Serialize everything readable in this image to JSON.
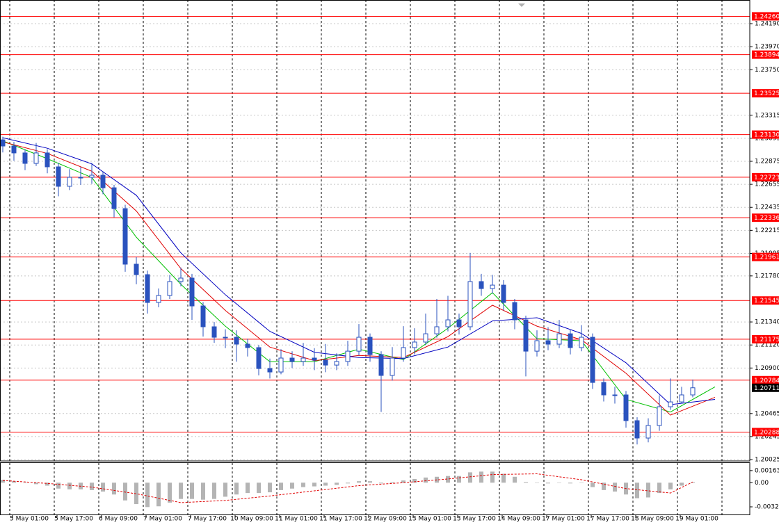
{
  "chart_data": {
    "type": "candlestick",
    "ylim": [
      1.20012,
      1.24416
    ],
    "yticks": [
      {
        "value": 1.2419,
        "label": "1.24190"
      },
      {
        "value": 1.2397,
        "label": "1.23970"
      },
      {
        "value": 1.2375,
        "label": "1.23750"
      },
      {
        "value": 1.23315,
        "label": "1.23315"
      },
      {
        "value": 1.23095,
        "label": "1.23095"
      },
      {
        "value": 1.22875,
        "label": "1.22875"
      },
      {
        "value": 1.22655,
        "label": "1.22655"
      },
      {
        "value": 1.22435,
        "label": "1.22435"
      },
      {
        "value": 1.22215,
        "label": "1.22215"
      },
      {
        "value": 1.21995,
        "label": "1.21995"
      },
      {
        "value": 1.2178,
        "label": "1.21780"
      },
      {
        "value": 1.2134,
        "label": "1.21340"
      },
      {
        "value": 1.2112,
        "label": "1.21120"
      },
      {
        "value": 1.209,
        "label": "1.20900"
      },
      {
        "value": 1.20465,
        "label": "1.20465"
      },
      {
        "value": 1.20245,
        "label": "1.20245"
      },
      {
        "value": 1.20025,
        "label": "1.20025"
      }
    ],
    "grid": true,
    "candle_color": "#2a52be",
    "candles": {
      "open": [
        1.2308,
        1.23021,
        1.22955,
        1.22855,
        1.22955,
        1.22822,
        1.22636,
        1.22722,
        1.22722,
        1.22742,
        1.22622,
        1.22423,
        1.21892,
        1.21792,
        1.21526,
        1.21593,
        1.21726,
        1.21759,
        1.21493,
        1.21294,
        1.21194,
        1.21194,
        1.21128,
        1.21095,
        1.20895,
        1.20862,
        1.20995,
        1.20962,
        1.20995,
        1.20975,
        1.20928,
        1.20962,
        1.21061,
        1.21194,
        1.21028,
        1.20829,
        1.20995,
        1.21095,
        1.21148,
        1.21227,
        1.21294,
        1.2136,
        1.21294,
        1.21726,
        1.21659,
        1.21692,
        1.21526,
        1.2136,
        1.21061,
        1.21161,
        1.21128,
        1.21227,
        1.21095,
        1.21194,
        1.20762,
        1.20643,
        1.20643,
        1.20397,
        1.20231,
        1.20351,
        1.2053,
        1.20576,
        1.20643
      ],
      "high": [
        1.2311,
        1.2306,
        1.2299,
        1.2305,
        1.2299,
        1.2286,
        1.228,
        1.2282,
        1.2286,
        1.2278,
        1.2265,
        1.2246,
        1.2196,
        1.2183,
        1.2166,
        1.2179,
        1.2186,
        1.218,
        1.2153,
        1.2134,
        1.2127,
        1.2126,
        1.2118,
        1.2112,
        1.2099,
        1.2108,
        1.2106,
        1.2114,
        1.2109,
        1.2113,
        1.2104,
        1.2116,
        1.2132,
        1.2123,
        1.2106,
        1.211,
        1.213,
        1.2128,
        1.2142,
        1.2156,
        1.2159,
        1.2142,
        1.22,
        1.218,
        1.2179,
        1.2174,
        1.2156,
        1.214,
        1.2126,
        1.2129,
        1.2136,
        1.2127,
        1.2131,
        1.2123,
        1.208,
        1.2072,
        1.2068,
        1.2043,
        1.2042,
        1.2064,
        1.208,
        1.2072,
        1.2079
      ],
      "low": [
        1.2296,
        1.2288,
        1.2279,
        1.2283,
        1.2276,
        1.2254,
        1.226,
        1.2265,
        1.2266,
        1.2256,
        1.2234,
        1.2182,
        1.217,
        1.2142,
        1.2148,
        1.2156,
        1.2168,
        1.2136,
        1.212,
        1.2114,
        1.2109,
        1.2096,
        1.2101,
        1.2083,
        1.208,
        1.2084,
        1.209,
        1.2092,
        1.2088,
        1.2086,
        1.2088,
        1.2092,
        1.2102,
        1.2096,
        1.2048,
        1.2078,
        1.2096,
        1.2103,
        1.2112,
        1.2119,
        1.2125,
        1.2122,
        1.2126,
        1.2159,
        1.2161,
        1.2145,
        1.2127,
        1.2082,
        1.2101,
        1.2107,
        1.2109,
        1.2103,
        1.2106,
        1.207,
        1.2058,
        1.2056,
        1.2033,
        1.2017,
        1.2019,
        1.203,
        1.205,
        1.2056,
        1.2062
      ],
      "close": [
        1.23021,
        1.22955,
        1.22855,
        1.22955,
        1.22822,
        1.22636,
        1.22722,
        1.22722,
        1.22742,
        1.22622,
        1.22423,
        1.21892,
        1.21792,
        1.21526,
        1.21593,
        1.21726,
        1.21759,
        1.21493,
        1.21294,
        1.21194,
        1.21194,
        1.21128,
        1.21095,
        1.20895,
        1.20862,
        1.20995,
        1.20962,
        1.20995,
        1.20975,
        1.20928,
        1.20962,
        1.21061,
        1.21194,
        1.21028,
        1.20829,
        1.20995,
        1.21095,
        1.21148,
        1.21227,
        1.21294,
        1.2136,
        1.21294,
        1.21726,
        1.21659,
        1.21692,
        1.21526,
        1.2136,
        1.21061,
        1.21161,
        1.21128,
        1.21227,
        1.21095,
        1.21194,
        1.20762,
        1.20643,
        1.20643,
        1.20397,
        1.20231,
        1.20351,
        1.2053,
        1.20576,
        1.20643,
        1.20711
      ]
    },
    "moving_averages": [
      {
        "color": "#00c000",
        "x": [
          0,
          4,
          8,
          12,
          16,
          20,
          24,
          28,
          32,
          36,
          40,
          44,
          48,
          52,
          56,
          60,
          64
        ],
        "values": [
          1.2307,
          1.229,
          1.2272,
          1.2215,
          1.217,
          1.213,
          1.2096,
          1.2096,
          1.2108,
          1.2098,
          1.2128,
          1.2162,
          1.2118,
          1.2116,
          1.206,
          1.2048,
          1.2072
        ]
      },
      {
        "color": "#e00000",
        "x": [
          0,
          4,
          8,
          12,
          16,
          20,
          24,
          28,
          32,
          36,
          40,
          44,
          48,
          52,
          56,
          60,
          64
        ],
        "values": [
          1.2306,
          1.2295,
          1.2278,
          1.224,
          1.2185,
          1.2145,
          1.211,
          1.2097,
          1.2102,
          1.21,
          1.212,
          1.215,
          1.213,
          1.2117,
          1.2085,
          1.2045,
          1.2062
        ]
      },
      {
        "color": "#0000c0",
        "x": [
          0,
          4,
          8,
          12,
          16,
          20,
          24,
          28,
          32,
          36,
          40,
          44,
          48,
          52,
          56,
          60,
          64
        ],
        "values": [
          1.231,
          1.23,
          1.2285,
          1.2255,
          1.22,
          1.216,
          1.2125,
          1.2105,
          1.21,
          1.2099,
          1.211,
          1.2135,
          1.2138,
          1.2123,
          1.2095,
          1.2055,
          1.206
        ]
      }
    ],
    "levels": {
      "color": "#ff0000",
      "values": [
        {
          "value": 1.2426,
          "label": "1.24260"
        },
        {
          "value": 1.23894,
          "label": "1.23894"
        },
        {
          "value": 1.23525,
          "label": "1.23525"
        },
        {
          "value": 1.2313,
          "label": "1.23130"
        },
        {
          "value": 1.22723,
          "label": "1.22723"
        },
        {
          "value": 1.22336,
          "label": "1.22336"
        },
        {
          "value": 1.21961,
          "label": "1.21961"
        },
        {
          "value": 1.21545,
          "label": "1.21545"
        },
        {
          "value": 1.21175,
          "label": "1.21175"
        },
        {
          "value": 1.20784,
          "label": "1.20784"
        },
        {
          "value": 1.20288,
          "label": "1.20288"
        }
      ]
    },
    "current_price": {
      "value": 1.20711,
      "label": "1.20711"
    },
    "xtick_labels": [
      "5 May 01:00",
      "5 May 17:00",
      "6 May 09:00",
      "7 May 01:00",
      "7 May 17:00",
      "10 May 09:00",
      "11 May 01:00",
      "11 May 17:00",
      "12 May 09:00",
      "13 May 01:00",
      "13 May 17:00",
      "14 May 09:00",
      "17 May 01:00",
      "17 May 17:00",
      "18 May 09:00",
      "19 May 01:00"
    ],
    "macd": {
      "ylim": [
        -0.0044,
        0.00266
      ],
      "yticks": [
        0.001637,
        {
          "value": 0,
          "label": "0.00"
        },
        -0.00327
      ],
      "histogram": {
        "color": "#b4b4b4",
        "values": [
          0.0004,
          0.0002,
          0,
          -0.0002,
          -0.0004,
          -0.0008,
          -0.0009,
          -0.0009,
          -0.001,
          -0.0012,
          -0.0016,
          -0.0024,
          -0.0029,
          -0.0033,
          -0.0032,
          -0.0027,
          -0.0022,
          -0.0022,
          -0.0023,
          -0.0022,
          -0.0019,
          -0.0016,
          -0.0014,
          -0.0014,
          -0.0013,
          -0.001,
          -0.0008,
          -0.0006,
          -0.0005,
          -0.0004,
          -0.0003,
          -0.0001,
          0.0002,
          0.0002,
          -0.0001,
          0.0001,
          0.0003,
          0.0005,
          0.0007,
          0.0008,
          0.0009,
          0.0009,
          0.0014,
          0.0015,
          0.0015,
          0.0012,
          0.0008,
          0.0001,
          0,
          -0.0001,
          0,
          -0.0001,
          0,
          -0.0006,
          -0.001,
          -0.0012,
          -0.0016,
          -0.0021,
          -0.002,
          -0.0014,
          -0.0009,
          -0.0004,
          0.0001
        ]
      },
      "signal": {
        "color": "#e00000",
        "x": [
          0,
          4,
          8,
          12,
          16,
          20,
          24,
          28,
          32,
          36,
          40,
          44,
          48,
          52,
          56,
          60,
          62
        ],
        "values": [
          0.0003,
          -0.0001,
          -0.0006,
          -0.0015,
          -0.0027,
          -0.0024,
          -0.0018,
          -0.0011,
          -0.0004,
          0,
          0.0005,
          0.0011,
          0.0012,
          0.0004,
          -0.0008,
          -0.0014,
          0.0001
        ]
      }
    }
  }
}
